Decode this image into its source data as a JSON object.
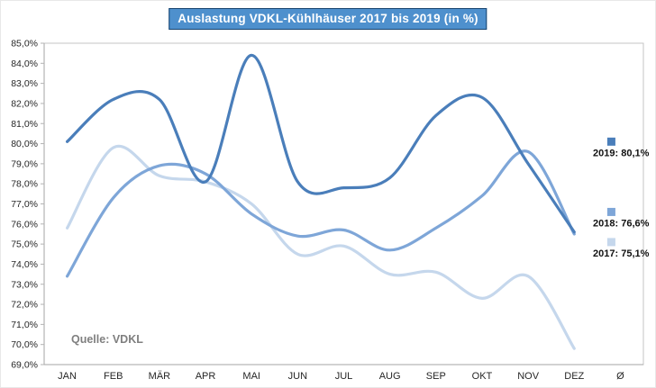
{
  "title": "Auslastung VDKL-Kühlhäuser 2017 bis 2019 (in %)",
  "source": "Quelle: VDKL",
  "colors": {
    "title_bg": "#4e90cd",
    "title_border": "#16436e",
    "title_text": "#ffffff",
    "frame": "#c6c6c6",
    "axis": "#a6a6a6",
    "tick": "#b3b3b3",
    "tick_text": "#262626",
    "source_text": "#7f7f7f"
  },
  "chart_data": {
    "type": "line",
    "title": "Auslastung VDKL-Kühlhäuser 2017 bis 2019 (in %)",
    "categories": [
      "JAN",
      "FEB",
      "MÄR",
      "APR",
      "MAI",
      "JUN",
      "JUL",
      "AUG",
      "SEP",
      "OKT",
      "NOV",
      "DEZ",
      "Ø"
    ],
    "xlabel": "",
    "ylabel": "",
    "ylim": [
      69.0,
      85.0
    ],
    "ytick_step": 1.0,
    "ytick_format": "comma-decimal-percent",
    "grid": false,
    "smooth": true,
    "legend_position": "at-average-column-right",
    "series": [
      {
        "name": "2017",
        "color": "#c5d7ec",
        "values": [
          75.8,
          79.8,
          78.4,
          78.1,
          77.0,
          74.5,
          74.9,
          73.5,
          73.6,
          72.3,
          73.4,
          69.8
        ],
        "average": 75.1,
        "average_label": "2017: 75,1%"
      },
      {
        "name": "2018",
        "color": "#7ea6d8",
        "values": [
          73.4,
          77.3,
          78.9,
          78.5,
          76.5,
          75.4,
          75.7,
          74.7,
          75.8,
          77.4,
          79.6,
          75.5
        ],
        "average": 76.6,
        "average_label": "2018: 76,6%"
      },
      {
        "name": "2019",
        "color": "#4a7eba",
        "values": [
          80.1,
          82.2,
          82.2,
          78.1,
          84.4,
          78.1,
          77.8,
          78.3,
          81.4,
          82.3,
          79.0,
          75.6
        ],
        "average": 80.1,
        "average_label": "2019: 80,1%"
      }
    ]
  }
}
